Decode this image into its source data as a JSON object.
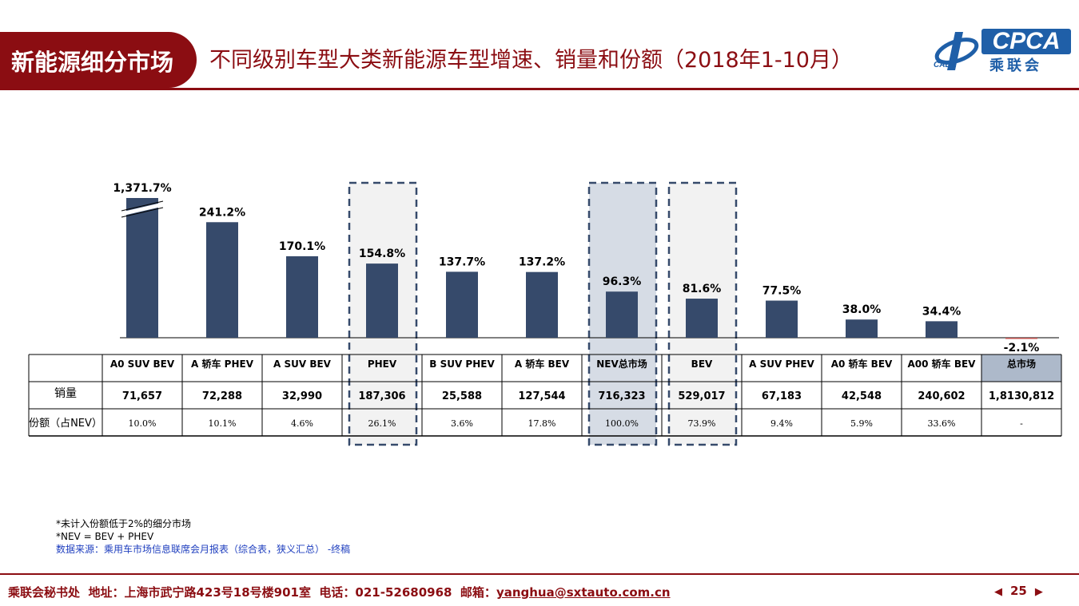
{
  "header": {
    "section_label": "新能源细分市场",
    "title": "不同级别车型大类新能源车型增速、销量和份额（2018年1-10月）",
    "logo": {
      "brand": "CPCA",
      "subtitle": "乘联会",
      "emblem": "CADA"
    }
  },
  "chart_data": {
    "type": "bar",
    "categories": [
      "A0 SUV BEV",
      "A 轿车 PHEV",
      "A SUV BEV",
      "PHEV",
      "B SUV PHEV",
      "A 轿车 BEV",
      "NEV总市场",
      "BEV",
      "A SUV PHEV",
      "A0 轿车 BEV",
      "A00 轿车 BEV",
      "总市场"
    ],
    "values": [
      1371.7,
      241.2,
      170.1,
      154.8,
      137.7,
      137.2,
      96.3,
      81.6,
      77.5,
      38.0,
      34.4,
      -2.1
    ],
    "data_labels": [
      "1,371.7%",
      "241.2%",
      "170.1%",
      "154.8%",
      "137.7%",
      "137.2%",
      "96.3%",
      "81.6%",
      "77.5%",
      "38.0%",
      "34.4%",
      "-2.1%"
    ],
    "broken_axis_bar": 0,
    "bar_color": "#364a6b",
    "negative_color": "#c0504d",
    "highlighted_dashed": [
      "PHEV",
      "NEV总市场",
      "BEV"
    ],
    "highlight_fill": "#f2f2f2",
    "nev_fill": "#d6dce5",
    "total_header_fill": "#adb9ca",
    "table": {
      "rows": [
        {
          "label": "销量",
          "values": [
            "71,657",
            "72,288",
            "32,990",
            "187,306",
            "25,588",
            "127,544",
            "716,323",
            "529,017",
            "67,183",
            "42,548",
            "240,602",
            "1,8130,812"
          ]
        },
        {
          "label": "份额（占NEV）",
          "values": [
            "10.0%",
            "10.1%",
            "4.6%",
            "26.1%",
            "3.6%",
            "17.8%",
            "100.0%",
            "73.9%",
            "9.4%",
            "5.9%",
            "33.6%",
            "-"
          ]
        }
      ]
    }
  },
  "notes": {
    "line1": "*未计入份额低于2%的细分市场",
    "line2": "*NEV = BEV + PHEV",
    "source": "数据来源：乘用车市场信息联席会月报表（综合表，狭义汇总） -终稿"
  },
  "footer": {
    "org": "乘联会秘书处",
    "address": "地址：上海市武宁路423号18号楼901室",
    "phone": "电话：021-52680968",
    "email_label": "邮箱：",
    "email": "yanghua@sxtauto.com.cn",
    "page_number": "25",
    "prev_icon": "triangle-left-icon",
    "next_icon": "triangle-right-icon"
  }
}
